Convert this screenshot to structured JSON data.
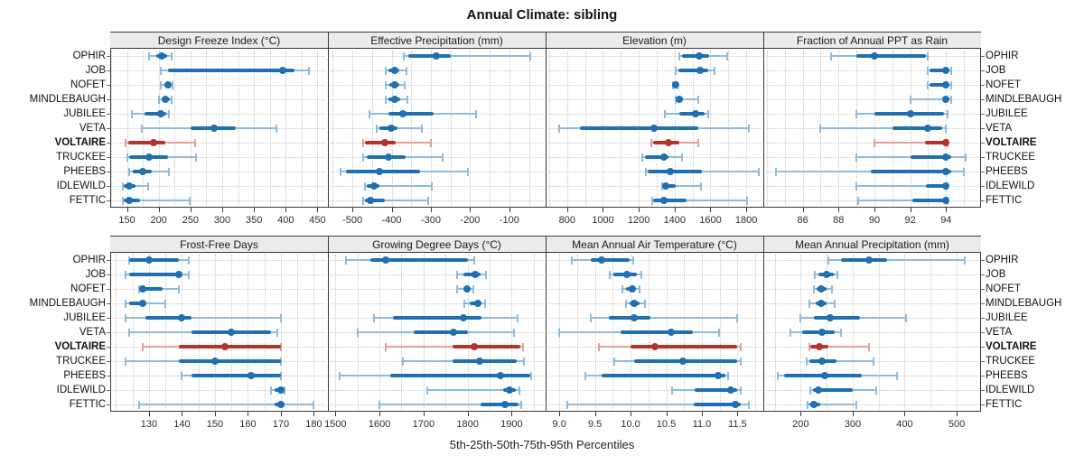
{
  "title": "Annual Climate: sibling",
  "caption": "5th-25th-50th-75th-95th Percentiles",
  "sites": [
    "OPHIR",
    "JOB",
    "NOFET",
    "MINDLEBAUGH",
    "JUBILEE",
    "VETA",
    "VOLTAIRE",
    "TRUCKEE",
    "PHEEBS",
    "IDLEWILD",
    "FETTIC"
  ],
  "highlight_site": "VOLTAIRE",
  "percentiles": [
    "5th",
    "25th",
    "50th",
    "75th",
    "95th"
  ],
  "colors": {
    "blue": "#1f6fb2",
    "blue_light": "#8fbcdc",
    "red": "#b5322d",
    "red_light": "#e2a09b",
    "strip_bg": "#ebebeb",
    "grid": "#c9c9c9",
    "border": "#3a3a3a"
  },
  "chart_data": [
    {
      "type": "scatter",
      "title": "Design Freeze Index (°C)",
      "xlim": [
        125,
        465
      ],
      "ticks": [
        150,
        200,
        250,
        300,
        350,
        400,
        450
      ],
      "tick_labels": [
        "150",
        "200",
        "250",
        "300",
        "350",
        "400",
        "450"
      ],
      "grid_step": 25,
      "series": [
        [
          185,
          196,
          204,
          213,
          220
        ],
        [
          203,
          215,
          396,
          414,
          437
        ],
        [
          203,
          210,
          215,
          220,
          222
        ],
        [
          201,
          207,
          211,
          217,
          221
        ],
        [
          158,
          178,
          203,
          212,
          216
        ],
        [
          173,
          250,
          287,
          322,
          385
        ],
        [
          148,
          152,
          192,
          211,
          257
        ],
        [
          150,
          153,
          185,
          215,
          259
        ],
        [
          154,
          159,
          175,
          189,
          216
        ],
        [
          143,
          145,
          153,
          163,
          184
        ],
        [
          143,
          145,
          154,
          170,
          249
        ]
      ]
    },
    {
      "type": "scatter",
      "title": "Effective Precipitation (mm)",
      "xlim": [
        -560,
        -10
      ],
      "ticks": [
        -500,
        -400,
        -300,
        -200,
        -100
      ],
      "tick_labels": [
        "-500",
        "-400",
        "-300",
        "-200",
        "-100"
      ],
      "grid_step": 50,
      "series": [
        [
          -370,
          -357,
          -286,
          -250,
          -47
        ],
        [
          -414,
          -407,
          -393,
          -380,
          -361
        ],
        [
          -414,
          -406,
          -392,
          -381,
          -366
        ],
        [
          -414,
          -407,
          -392,
          -378,
          -360
        ],
        [
          -456,
          -407,
          -372,
          -292,
          -186
        ],
        [
          -439,
          -430,
          -401,
          -384,
          -323
        ],
        [
          -473,
          -468,
          -418,
          -390,
          -300
        ],
        [
          -473,
          -464,
          -408,
          -365,
          -270
        ],
        [
          -529,
          -517,
          -432,
          -327,
          -205
        ],
        [
          -468,
          -464,
          -445,
          -430,
          -298
        ],
        [
          -472,
          -467,
          -455,
          -418,
          -308
        ]
      ]
    },
    {
      "type": "scatter",
      "title": "Elevation (m)",
      "xlim": [
        685,
        1890
      ],
      "ticks": [
        800,
        1000,
        1200,
        1400,
        1600,
        1800
      ],
      "tick_labels": [
        "800",
        "1000",
        "1200",
        "1400",
        "1600",
        "1800"
      ],
      "grid_step": 100,
      "series": [
        [
          1425,
          1442,
          1537,
          1592,
          1692
        ],
        [
          1405,
          1420,
          1540,
          1590,
          1625
        ],
        [
          1392,
          1400,
          1405,
          1412,
          1418
        ],
        [
          1408,
          1412,
          1425,
          1445,
          1533
        ],
        [
          1347,
          1425,
          1517,
          1567,
          1588
        ],
        [
          755,
          870,
          1283,
          1530,
          1813
        ],
        [
          1272,
          1280,
          1367,
          1425,
          1530
        ],
        [
          1217,
          1233,
          1338,
          1367,
          1442
        ],
        [
          1242,
          1250,
          1378,
          1550,
          1870
        ],
        [
          1328,
          1335,
          1351,
          1405,
          1548
        ],
        [
          1273,
          1281,
          1340,
          1465,
          1803
        ]
      ]
    },
    {
      "type": "scatter",
      "title": "Fraction of Annual PPT as Rain",
      "xlim": [
        83.85,
        95.9
      ],
      "ticks": [
        86,
        88,
        90,
        92,
        94
      ],
      "tick_labels": [
        "86",
        "88",
        "90",
        "92",
        "94"
      ],
      "grid_step": 1,
      "series": [
        [
          87.6,
          89.0,
          90.0,
          92.9,
          93.0
        ],
        [
          93.0,
          93.1,
          94.0,
          94.1,
          94.3
        ],
        [
          93.0,
          93.1,
          94.0,
          94.1,
          94.3
        ],
        [
          92.0,
          93.9,
          94.0,
          94.1,
          94.3
        ],
        [
          89.0,
          90.0,
          92.0,
          93.9,
          94.1
        ],
        [
          87.0,
          91.0,
          93.0,
          93.8,
          94.0
        ],
        [
          90.0,
          92.8,
          94.0,
          94.05,
          94.1
        ],
        [
          89.0,
          92.0,
          94.0,
          94.3,
          95.1
        ],
        [
          84.5,
          89.8,
          94.0,
          94.3,
          95.0
        ],
        [
          89.0,
          92.9,
          94.0,
          94.0,
          94.05
        ],
        [
          89.1,
          92.1,
          94.0,
          94.05,
          94.1
        ]
      ]
    },
    {
      "type": "scatter",
      "title": "Frost-Free Days",
      "xlim": [
        118.5,
        184
      ],
      "ticks": [
        130,
        140,
        150,
        160,
        170,
        180
      ],
      "tick_labels": [
        "130",
        "140",
        "150",
        "160",
        "170",
        "180"
      ],
      "grid_step": 5,
      "series": [
        [
          124,
          124,
          130,
          139,
          142
        ],
        [
          123,
          124,
          139,
          140,
          142
        ],
        [
          127,
          128,
          128,
          134,
          139
        ],
        [
          123,
          124,
          128,
          129,
          135
        ],
        [
          123,
          129,
          140,
          143,
          170
        ],
        [
          124,
          143,
          155,
          167,
          169
        ],
        [
          128,
          139,
          153,
          170,
          170
        ],
        [
          123,
          139,
          150,
          170,
          170
        ],
        [
          140,
          143,
          161,
          170,
          170
        ],
        [
          167,
          168,
          170,
          170,
          171
        ],
        [
          127,
          168,
          170,
          171,
          180
        ]
      ]
    },
    {
      "type": "scatter",
      "title": "Growing Degree Days (°C)",
      "xlim": [
        1485,
        1975
      ],
      "ticks": [
        1500,
        1600,
        1700,
        1800,
        1900
      ],
      "tick_labels": [
        "1500",
        "1600",
        "1700",
        "1800",
        "1900"
      ],
      "grid_step": 50,
      "series": [
        [
          1524,
          1580,
          1615,
          1800,
          1815
        ],
        [
          1776,
          1790,
          1818,
          1829,
          1841
        ],
        [
          1776,
          1790,
          1798,
          1805,
          1814
        ],
        [
          1793,
          1805,
          1823,
          1832,
          1839
        ],
        [
          1588,
          1631,
          1791,
          1832,
          1913
        ],
        [
          1550,
          1677,
          1768,
          1801,
          1906
        ],
        [
          1615,
          1766,
          1815,
          1920,
          1925
        ],
        [
          1654,
          1766,
          1827,
          1911,
          1927
        ],
        [
          1510,
          1625,
          1875,
          1942,
          1944
        ],
        [
          1709,
          1880,
          1896,
          1910,
          1918
        ],
        [
          1599,
          1829,
          1884,
          1915,
          1921
        ]
      ]
    },
    {
      "type": "scatter",
      "title": "Mean Annual Air Temperature (°C)",
      "xlim": [
        8.82,
        11.85
      ],
      "ticks": [
        9.0,
        9.5,
        10.0,
        10.5,
        11.0,
        11.5
      ],
      "tick_labels": [
        "9.0",
        "9.5",
        "10.0",
        "10.5",
        "11.0",
        "11.5"
      ],
      "grid_step": 0.25,
      "series": [
        [
          9.17,
          9.44,
          9.59,
          9.99,
          10.04
        ],
        [
          9.71,
          9.76,
          9.95,
          10.09,
          10.15
        ],
        [
          9.89,
          9.93,
          10.03,
          10.08,
          10.12
        ],
        [
          9.94,
          9.99,
          10.05,
          10.12,
          10.2
        ],
        [
          9.44,
          9.7,
          10.05,
          10.28,
          11.5
        ],
        [
          9.0,
          9.86,
          10.57,
          10.87,
          11.24
        ],
        [
          9.55,
          10.0,
          10.34,
          11.5,
          11.55
        ],
        [
          9.77,
          10.05,
          10.74,
          11.5,
          11.55
        ],
        [
          9.37,
          9.59,
          11.23,
          11.33,
          11.37
        ],
        [
          10.58,
          10.9,
          11.41,
          11.5,
          11.54
        ],
        [
          9.11,
          10.89,
          11.47,
          11.55,
          11.66
        ]
      ]
    },
    {
      "type": "scatter",
      "title": "Mean Annual Precipitation (mm)",
      "xlim": [
        130,
        545
      ],
      "ticks": [
        200,
        300,
        400,
        500
      ],
      "tick_labels": [
        "200",
        "300",
        "400",
        "500"
      ],
      "grid_step": 50,
      "series": [
        [
          253,
          277,
          331,
          367,
          516
        ],
        [
          227,
          234,
          249,
          263,
          271
        ],
        [
          226,
          230,
          240,
          250,
          261
        ],
        [
          217,
          229,
          240,
          250,
          265
        ],
        [
          199,
          226,
          256,
          314,
          402
        ],
        [
          180,
          203,
          241,
          266,
          278
        ],
        [
          216,
          218,
          236,
          254,
          331
        ],
        [
          211,
          217,
          241,
          269,
          340
        ],
        [
          156,
          168,
          247,
          317,
          385
        ],
        [
          219,
          223,
          235,
          300,
          345
        ],
        [
          213,
          216,
          226,
          237,
          307
        ]
      ]
    }
  ]
}
